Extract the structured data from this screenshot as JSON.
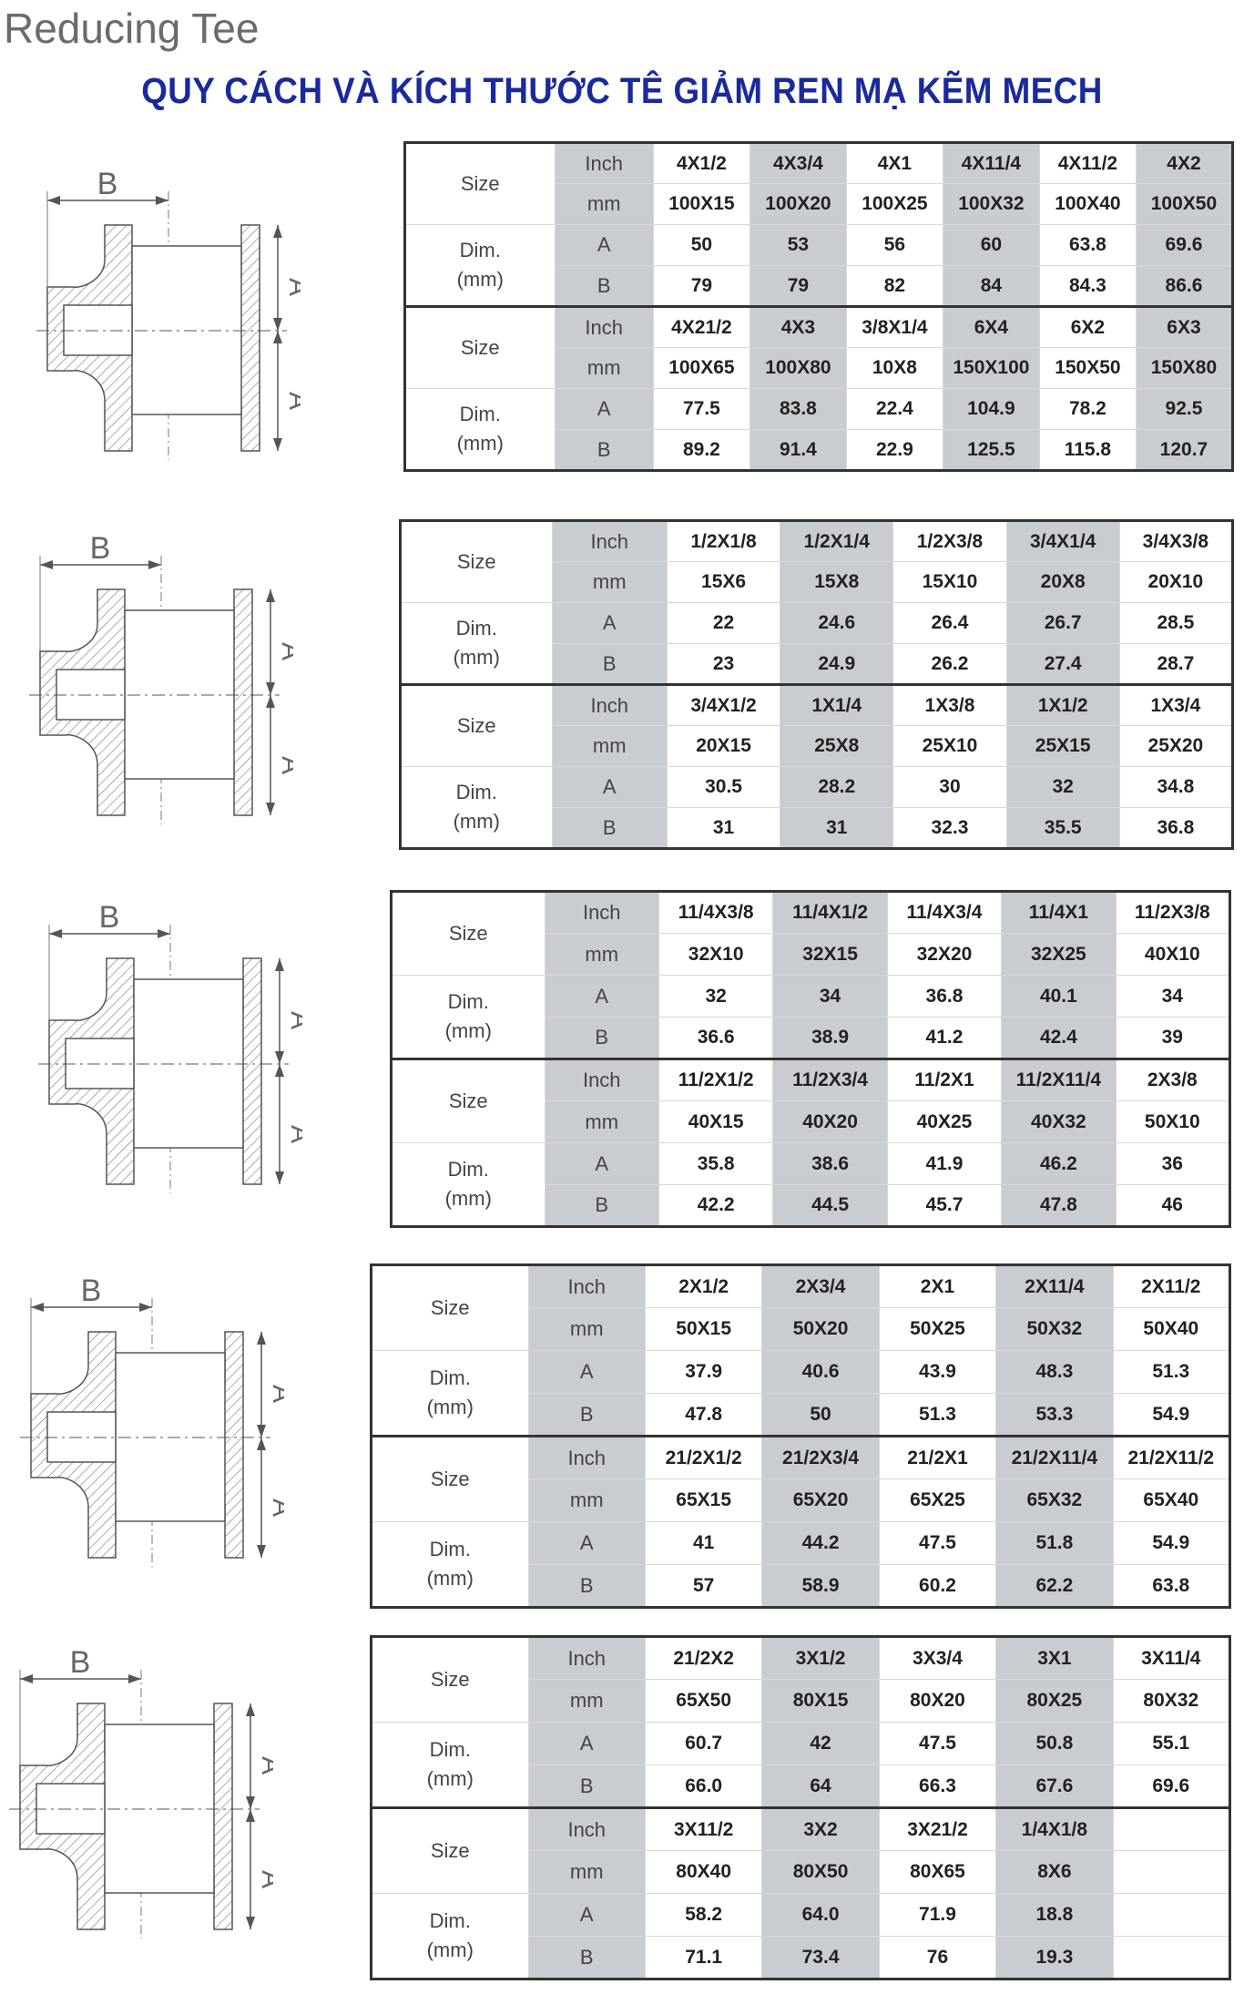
{
  "header": {
    "title": "Reducing Tee",
    "subtitle": "QUY CÁCH VÀ KÍCH THƯỚC TÊ GIẢM REN MẠ KẼM MECH"
  },
  "labels": {
    "size": "Size",
    "dim": "Dim.",
    "dim_unit": "(mm)",
    "inch": "Inch",
    "mm": "mm",
    "a": "A",
    "b": "B"
  },
  "drawing": {
    "label_a": "A",
    "label_b": "B"
  },
  "colors": {
    "subtitle": "#1a2a9c",
    "shaded_cell": "#c9ccd1",
    "border": "#333333"
  },
  "sections": [
    {
      "blocks": [
        {
          "inch": [
            "4X1/2",
            "4X3/4",
            "4X1",
            "4X11/4",
            "4X11/2",
            "4X2"
          ],
          "mm": [
            "100X15",
            "100X20",
            "100X25",
            "100X32",
            "100X40",
            "100X50"
          ],
          "a": [
            "50",
            "53",
            "56",
            "60",
            "63.8",
            "69.6"
          ],
          "b": [
            "79",
            "79",
            "82",
            "84",
            "84.3",
            "86.6"
          ]
        },
        {
          "inch": [
            "4X21/2",
            "4X3",
            "3/8X1/4",
            "6X4",
            "6X2",
            "6X3"
          ],
          "mm": [
            "100X65",
            "100X80",
            "10X8",
            "150X100",
            "150X50",
            "150X80"
          ],
          "a": [
            "77.5",
            "83.8",
            "22.4",
            "104.9",
            "78.2",
            "92.5"
          ],
          "b": [
            "89.2",
            "91.4",
            "22.9",
            "125.5",
            "115.8",
            "120.7"
          ]
        }
      ]
    },
    {
      "blocks": [
        {
          "inch": [
            "1/2X1/8",
            "1/2X1/4",
            "1/2X3/8",
            "3/4X1/4",
            "3/4X3/8"
          ],
          "mm": [
            "15X6",
            "15X8",
            "15X10",
            "20X8",
            "20X10"
          ],
          "a": [
            "22",
            "24.6",
            "26.4",
            "26.7",
            "28.5"
          ],
          "b": [
            "23",
            "24.9",
            "26.2",
            "27.4",
            "28.7"
          ]
        },
        {
          "inch": [
            "3/4X1/2",
            "1X1/4",
            "1X3/8",
            "1X1/2",
            "1X3/4"
          ],
          "mm": [
            "20X15",
            "25X8",
            "25X10",
            "25X15",
            "25X20"
          ],
          "a": [
            "30.5",
            "28.2",
            "30",
            "32",
            "34.8"
          ],
          "b": [
            "31",
            "31",
            "32.3",
            "35.5",
            "36.8"
          ]
        }
      ]
    },
    {
      "blocks": [
        {
          "inch": [
            "11/4X3/8",
            "11/4X1/2",
            "11/4X3/4",
            "11/4X1",
            "11/2X3/8"
          ],
          "mm": [
            "32X10",
            "32X15",
            "32X20",
            "32X25",
            "40X10"
          ],
          "a": [
            "32",
            "34",
            "36.8",
            "40.1",
            "34"
          ],
          "b": [
            "36.6",
            "38.9",
            "41.2",
            "42.4",
            "39"
          ]
        },
        {
          "inch": [
            "11/2X1/2",
            "11/2X3/4",
            "11/2X1",
            "11/2X11/4",
            "2X3/8"
          ],
          "mm": [
            "40X15",
            "40X20",
            "40X25",
            "40X32",
            "50X10"
          ],
          "a": [
            "35.8",
            "38.6",
            "41.9",
            "46.2",
            "36"
          ],
          "b": [
            "42.2",
            "44.5",
            "45.7",
            "47.8",
            "46"
          ]
        }
      ]
    },
    {
      "blocks": [
        {
          "inch": [
            "2X1/2",
            "2X3/4",
            "2X1",
            "2X11/4",
            "2X11/2"
          ],
          "mm": [
            "50X15",
            "50X20",
            "50X25",
            "50X32",
            "50X40"
          ],
          "a": [
            "37.9",
            "40.6",
            "43.9",
            "48.3",
            "51.3"
          ],
          "b": [
            "47.8",
            "50",
            "51.3",
            "53.3",
            "54.9"
          ]
        },
        {
          "inch": [
            "21/2X1/2",
            "21/2X3/4",
            "21/2X1",
            "21/2X11/4",
            "21/2X11/2"
          ],
          "mm": [
            "65X15",
            "65X20",
            "65X25",
            "65X32",
            "65X40"
          ],
          "a": [
            "41",
            "44.2",
            "47.5",
            "51.8",
            "54.9"
          ],
          "b": [
            "57",
            "58.9",
            "60.2",
            "62.2",
            "63.8"
          ]
        }
      ]
    },
    {
      "blocks": [
        {
          "inch": [
            "21/2X2",
            "3X1/2",
            "3X3/4",
            "3X1",
            "3X11/4"
          ],
          "mm": [
            "65X50",
            "80X15",
            "80X20",
            "80X25",
            "80X32"
          ],
          "a": [
            "60.7",
            "42",
            "47.5",
            "50.8",
            "55.1"
          ],
          "b": [
            "66.0",
            "64",
            "66.3",
            "67.6",
            "69.6"
          ]
        },
        {
          "inch": [
            "3X11/2",
            "3X2",
            "3X21/2",
            "1/4X1/8",
            ""
          ],
          "mm": [
            "80X40",
            "80X50",
            "80X65",
            "8X6",
            ""
          ],
          "a": [
            "58.2",
            "64.0",
            "71.9",
            "18.8",
            ""
          ],
          "b": [
            "71.1",
            "73.4",
            "76",
            "19.3",
            ""
          ]
        }
      ]
    }
  ]
}
